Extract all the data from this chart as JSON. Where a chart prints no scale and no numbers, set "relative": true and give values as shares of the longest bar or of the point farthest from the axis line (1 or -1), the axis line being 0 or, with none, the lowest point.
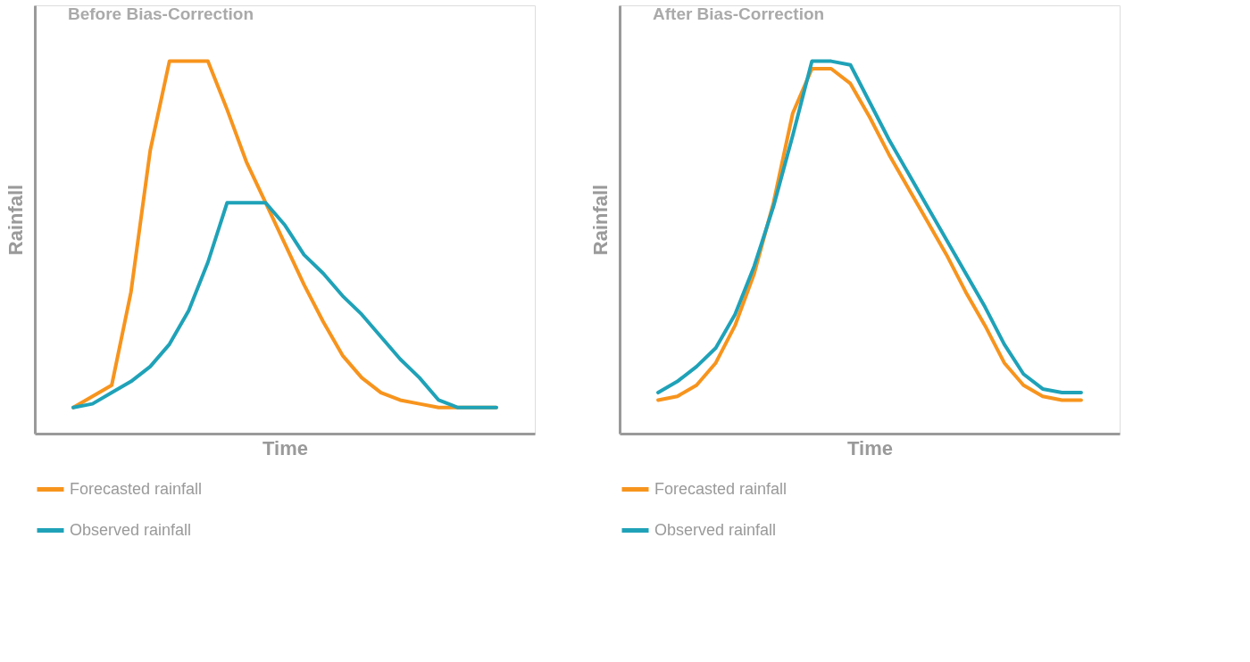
{
  "chart_data": [
    {
      "type": "line",
      "title": "Before Bias-Correction",
      "xlabel": "Time",
      "ylabel": "Rainfall",
      "relative": true,
      "grid": false,
      "legend": "bottom",
      "marker": "none",
      "line_style": "solid",
      "categories": [
        null,
        null,
        null,
        null,
        null,
        null,
        null,
        null,
        null,
        null,
        null,
        null,
        null,
        null,
        null,
        null,
        null,
        null,
        null,
        null,
        null,
        null,
        null
      ],
      "series": [
        {
          "name": "Forecasted rainfall",
          "color": "#f7941d",
          "values": [
            0.07,
            0.1,
            0.13,
            0.38,
            0.76,
            1,
            1,
            1,
            0.87,
            0.73,
            0.62,
            0.51,
            0.4,
            0.3,
            0.21,
            0.15,
            0.11,
            0.09,
            0.08,
            0.07,
            0.07,
            0.07,
            0.07
          ]
        },
        {
          "name": "Observed rainfall",
          "color": "#1fa2b8",
          "values": [
            0.07,
            0.08,
            0.11,
            0.14,
            0.18,
            0.24,
            0.33,
            0.46,
            0.62,
            0.62,
            0.62,
            0.56,
            0.48,
            0.43,
            0.37,
            0.32,
            0.26,
            0.2,
            0.15,
            0.09,
            0.07,
            0.07,
            0.07
          ]
        }
      ]
    },
    {
      "type": "line",
      "title": "After Bias-Correction",
      "xlabel": "Time",
      "ylabel": "Rainfall",
      "relative": true,
      "grid": false,
      "legend": "bottom",
      "marker": "none",
      "line_style": "solid",
      "categories": [
        null,
        null,
        null,
        null,
        null,
        null,
        null,
        null,
        null,
        null,
        null,
        null,
        null,
        null,
        null,
        null,
        null,
        null,
        null,
        null,
        null,
        null,
        null
      ],
      "series": [
        {
          "name": "Forecasted rainfall",
          "color": "#f7941d",
          "values": [
            0.09,
            0.1,
            0.13,
            0.19,
            0.29,
            0.43,
            0.62,
            0.86,
            0.98,
            0.98,
            0.94,
            0.85,
            0.75,
            0.66,
            0.57,
            0.48,
            0.38,
            0.29,
            0.19,
            0.13,
            0.1,
            0.09,
            0.09
          ]
        },
        {
          "name": "Observed rainfall",
          "color": "#1fa2b8",
          "values": [
            0.11,
            0.14,
            0.18,
            0.23,
            0.32,
            0.45,
            0.61,
            0.8,
            1,
            1,
            0.99,
            0.89,
            0.79,
            0.7,
            0.61,
            0.52,
            0.43,
            0.34,
            0.24,
            0.16,
            0.12,
            0.11,
            0.11
          ]
        }
      ]
    }
  ]
}
